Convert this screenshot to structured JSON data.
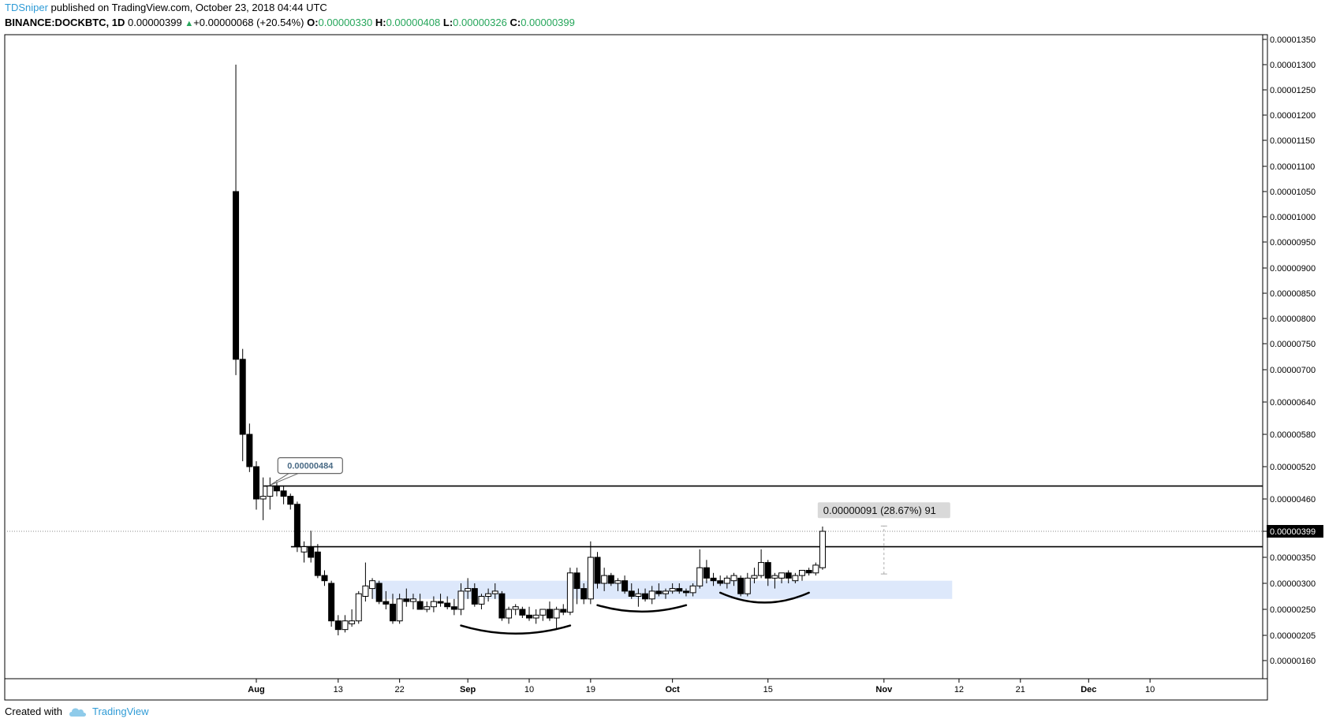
{
  "header": {
    "author": "TDSniper",
    "published": "published on TradingView.com, October 23, 2018 04:44 UTC",
    "symbol": "BINANCE:DOCKBTC, 1D",
    "last": "0.00000399",
    "change": "+0.00000068 (+20.54%)",
    "o_label": "O:",
    "o": "0.00000330",
    "h_label": "H:",
    "h": "0.00000408",
    "l_label": "L:",
    "l": "0.00000326",
    "c_label": "C:",
    "c": "0.00000399"
  },
  "footer": {
    "created": "Created with",
    "brand": "TradingView",
    "logo_icon": "tradingview-cloud-icon"
  },
  "colors": {
    "up": "#26a65b",
    "brand": "#2f9bd6",
    "zone": "#dde8fb",
    "candle": "#000000"
  },
  "chart_data": {
    "type": "candlestick",
    "y_axis_labels": [
      "0.00001350",
      "0.00001300",
      "0.00001250",
      "0.00001200",
      "0.00001150",
      "0.00001100",
      "0.00001050",
      "0.00001000",
      "0.00000950",
      "0.00000900",
      "0.00000850",
      "0.00000800",
      "0.00000750",
      "0.00000700",
      "0.00000640",
      "0.00000580",
      "0.00000520",
      "0.00000460",
      "0.00000399",
      "0.00000350",
      "0.00000300",
      "0.00000250",
      "0.00000205",
      "0.00000160"
    ],
    "x_axis": [
      {
        "label": "Aug",
        "date": "2018-08-01",
        "bold": true
      },
      {
        "label": "13",
        "date": "2018-08-13"
      },
      {
        "label": "22",
        "date": "2018-08-22"
      },
      {
        "label": "Sep",
        "date": "2018-09-01",
        "bold": true
      },
      {
        "label": "10",
        "date": "2018-09-10"
      },
      {
        "label": "19",
        "date": "2018-09-19"
      },
      {
        "label": "Oct",
        "date": "2018-10-01",
        "bold": true
      },
      {
        "label": "15",
        "date": "2018-10-15"
      },
      {
        "label": "Nov",
        "date": "2018-11-01",
        "bold": true
      },
      {
        "label": "12",
        "date": "2018-11-12"
      },
      {
        "label": "21",
        "date": "2018-11-21"
      },
      {
        "label": "Dec",
        "date": "2018-12-01",
        "bold": true
      },
      {
        "label": "10",
        "date": "2018-12-10"
      }
    ],
    "last_price": "0.00000399",
    "ohlc": [
      {
        "date": "2018-07-29",
        "o": 1.05e-05,
        "h": 1.3e-05,
        "l": 6.9e-06,
        "c": 7.2e-06
      },
      {
        "date": "2018-07-30",
        "o": 7.2e-06,
        "h": 7.4e-06,
        "l": 5.3e-06,
        "c": 5.8e-06
      },
      {
        "date": "2018-07-31",
        "o": 5.8e-06,
        "h": 6e-06,
        "l": 5.1e-06,
        "c": 5.2e-06
      },
      {
        "date": "2018-08-01",
        "o": 5.2e-06,
        "h": 5.3e-06,
        "l": 4.4e-06,
        "c": 4.6e-06
      },
      {
        "date": "2018-08-02",
        "o": 4.6e-06,
        "h": 5e-06,
        "l": 4.2e-06,
        "c": 4.65e-06
      },
      {
        "date": "2018-08-03",
        "o": 4.65e-06,
        "h": 5e-06,
        "l": 4.4e-06,
        "c": 4.84e-06
      },
      {
        "date": "2018-08-04",
        "o": 4.84e-06,
        "h": 4.95e-06,
        "l": 4.65e-06,
        "c": 4.75e-06
      },
      {
        "date": "2018-08-05",
        "o": 4.75e-06,
        "h": 4.85e-06,
        "l": 4.5e-06,
        "c": 4.65e-06
      },
      {
        "date": "2018-08-06",
        "o": 4.65e-06,
        "h": 4.7e-06,
        "l": 4.4e-06,
        "c": 4.5e-06
      },
      {
        "date": "2018-08-07",
        "o": 4.5e-06,
        "h": 4.55e-06,
        "l": 3.6e-06,
        "c": 3.7e-06
      },
      {
        "date": "2018-08-08",
        "o": 3.6e-06,
        "h": 3.8e-06,
        "l": 3.4e-06,
        "c": 3.7e-06
      },
      {
        "date": "2018-08-09",
        "o": 3.7e-06,
        "h": 4e-06,
        "l": 3.4e-06,
        "c": 3.5e-06
      },
      {
        "date": "2018-08-10",
        "o": 3.6e-06,
        "h": 3.75e-06,
        "l": 3.1e-06,
        "c": 3.15e-06
      },
      {
        "date": "2018-08-11",
        "o": 3.15e-06,
        "h": 3.25e-06,
        "l": 2.95e-06,
        "c": 3.05e-06
      },
      {
        "date": "2018-08-12",
        "o": 3e-06,
        "h": 3.05e-06,
        "l": 2.2e-06,
        "c": 2.3e-06
      },
      {
        "date": "2018-08-13",
        "o": 2.3e-06,
        "h": 2.4e-06,
        "l": 2.05e-06,
        "c": 2.15e-06
      },
      {
        "date": "2018-08-14",
        "o": 2.15e-06,
        "h": 2.4e-06,
        "l": 2.1e-06,
        "c": 2.3e-06
      },
      {
        "date": "2018-08-15",
        "o": 2.25e-06,
        "h": 2.5e-06,
        "l": 2.2e-06,
        "c": 2.3e-06
      },
      {
        "date": "2018-08-16",
        "o": 2.3e-06,
        "h": 2.85e-06,
        "l": 2.25e-06,
        "c": 2.8e-06
      },
      {
        "date": "2018-08-17",
        "o": 2.75e-06,
        "h": 3.4e-06,
        "l": 2.65e-06,
        "c": 2.95e-06
      },
      {
        "date": "2018-08-18",
        "o": 2.9e-06,
        "h": 3.1e-06,
        "l": 2.7e-06,
        "c": 3.05e-06
      },
      {
        "date": "2018-08-19",
        "o": 3e-06,
        "h": 3.05e-06,
        "l": 2.6e-06,
        "c": 2.65e-06
      },
      {
        "date": "2018-08-20",
        "o": 2.65e-06,
        "h": 2.85e-06,
        "l": 2.5e-06,
        "c": 2.6e-06
      },
      {
        "date": "2018-08-21",
        "o": 2.6e-06,
        "h": 2.8e-06,
        "l": 2.25e-06,
        "c": 2.3e-06
      },
      {
        "date": "2018-08-22",
        "o": 2.3e-06,
        "h": 2.8e-06,
        "l": 2.25e-06,
        "c": 2.7e-06
      },
      {
        "date": "2018-08-23",
        "o": 2.7e-06,
        "h": 2.9e-06,
        "l": 2.55e-06,
        "c": 2.65e-06
      },
      {
        "date": "2018-08-24",
        "o": 2.65e-06,
        "h": 2.8e-06,
        "l": 2.5e-06,
        "c": 2.7e-06
      },
      {
        "date": "2018-08-25",
        "o": 2.65e-06,
        "h": 2.8e-06,
        "l": 2.5e-06,
        "c": 2.5e-06
      },
      {
        "date": "2018-08-26",
        "o": 2.5e-06,
        "h": 2.65e-06,
        "l": 2.45e-06,
        "c": 2.55e-06
      },
      {
        "date": "2018-08-27",
        "o": 2.55e-06,
        "h": 2.75e-06,
        "l": 2.45e-06,
        "c": 2.65e-06
      },
      {
        "date": "2018-08-28",
        "o": 2.65e-06,
        "h": 2.8e-06,
        "l": 2.55e-06,
        "c": 2.62e-06
      },
      {
        "date": "2018-08-29",
        "o": 2.62e-06,
        "h": 2.75e-06,
        "l": 2.5e-06,
        "c": 2.55e-06
      },
      {
        "date": "2018-08-30",
        "o": 2.55e-06,
        "h": 2.7e-06,
        "l": 2.4e-06,
        "c": 2.5e-06
      },
      {
        "date": "2018-08-31",
        "o": 2.5e-06,
        "h": 3e-06,
        "l": 2.4e-06,
        "c": 2.85e-06
      },
      {
        "date": "2018-09-01",
        "o": 2.85e-06,
        "h": 3.1e-06,
        "l": 2.7e-06,
        "c": 2.9e-06
      },
      {
        "date": "2018-09-02",
        "o": 2.9e-06,
        "h": 3e-06,
        "l": 2.55e-06,
        "c": 2.6e-06
      },
      {
        "date": "2018-09-03",
        "o": 2.6e-06,
        "h": 2.8e-06,
        "l": 2.5e-06,
        "c": 2.75e-06
      },
      {
        "date": "2018-09-04",
        "o": 2.75e-06,
        "h": 2.9e-06,
        "l": 2.65e-06,
        "c": 2.8e-06
      },
      {
        "date": "2018-09-05",
        "o": 2.8e-06,
        "h": 3e-06,
        "l": 2.7e-06,
        "c": 2.85e-06
      },
      {
        "date": "2018-09-06",
        "o": 2.8e-06,
        "h": 2.85e-06,
        "l": 2.3e-06,
        "c": 2.35e-06
      },
      {
        "date": "2018-09-07",
        "o": 2.35e-06,
        "h": 2.55e-06,
        "l": 2.25e-06,
        "c": 2.5e-06
      },
      {
        "date": "2018-09-08",
        "o": 2.5e-06,
        "h": 2.6e-06,
        "l": 2.4e-06,
        "c": 2.55e-06
      },
      {
        "date": "2018-09-09",
        "o": 2.5e-06,
        "h": 2.55e-06,
        "l": 2.35e-06,
        "c": 2.4e-06
      },
      {
        "date": "2018-09-10",
        "o": 2.4e-06,
        "h": 2.55e-06,
        "l": 2.3e-06,
        "c": 2.35e-06
      },
      {
        "date": "2018-09-11",
        "o": 2.35e-06,
        "h": 2.5e-06,
        "l": 2.25e-06,
        "c": 2.4e-06
      },
      {
        "date": "2018-09-12",
        "o": 2.4e-06,
        "h": 2.5e-06,
        "l": 2.3e-06,
        "c": 2.5e-06
      },
      {
        "date": "2018-09-13",
        "o": 2.5e-06,
        "h": 2.65e-06,
        "l": 2.3e-06,
        "c": 2.35e-06
      },
      {
        "date": "2018-09-14",
        "o": 2.35e-06,
        "h": 2.55e-06,
        "l": 2.15e-06,
        "c": 2.5e-06
      },
      {
        "date": "2018-09-15",
        "o": 2.5e-06,
        "h": 2.6e-06,
        "l": 2.4e-06,
        "c": 2.45e-06
      },
      {
        "date": "2018-09-16",
        "o": 2.45e-06,
        "h": 3.3e-06,
        "l": 2.4e-06,
        "c": 3.2e-06
      },
      {
        "date": "2018-09-17",
        "o": 3.2e-06,
        "h": 3.3e-06,
        "l": 2.6e-06,
        "c": 2.9e-06
      },
      {
        "date": "2018-09-18",
        "o": 2.9e-06,
        "h": 3e-06,
        "l": 2.6e-06,
        "c": 2.7e-06
      },
      {
        "date": "2018-09-19",
        "o": 2.7e-06,
        "h": 3.8e-06,
        "l": 2.6e-06,
        "c": 3.5e-06
      },
      {
        "date": "2018-09-20",
        "o": 3.5e-06,
        "h": 3.6e-06,
        "l": 2.9e-06,
        "c": 3e-06
      },
      {
        "date": "2018-09-21",
        "o": 3e-06,
        "h": 3.3e-06,
        "l": 2.85e-06,
        "c": 3.15e-06
      },
      {
        "date": "2018-09-22",
        "o": 3.15e-06,
        "h": 3.2e-06,
        "l": 2.95e-06,
        "c": 3e-06
      },
      {
        "date": "2018-09-23",
        "o": 3e-06,
        "h": 3.1e-06,
        "l": 2.85e-06,
        "c": 3.05e-06
      },
      {
        "date": "2018-09-24",
        "o": 3.05e-06,
        "h": 3.15e-06,
        "l": 2.8e-06,
        "c": 2.85e-06
      },
      {
        "date": "2018-09-25",
        "o": 2.85e-06,
        "h": 3e-06,
        "l": 2.7e-06,
        "c": 2.75e-06
      },
      {
        "date": "2018-09-26",
        "o": 2.75e-06,
        "h": 2.9e-06,
        "l": 2.55e-06,
        "c": 2.8e-06
      },
      {
        "date": "2018-09-27",
        "o": 2.8e-06,
        "h": 2.9e-06,
        "l": 2.65e-06,
        "c": 2.7e-06
      },
      {
        "date": "2018-09-28",
        "o": 2.7e-06,
        "h": 2.95e-06,
        "l": 2.6e-06,
        "c": 2.85e-06
      },
      {
        "date": "2018-09-29",
        "o": 2.85e-06,
        "h": 3e-06,
        "l": 2.75e-06,
        "c": 2.8e-06
      },
      {
        "date": "2018-09-30",
        "o": 2.8e-06,
        "h": 2.9e-06,
        "l": 2.7e-06,
        "c": 2.85e-06
      },
      {
        "date": "2018-10-01",
        "o": 2.85e-06,
        "h": 3e-06,
        "l": 2.8e-06,
        "c": 2.9e-06
      },
      {
        "date": "2018-10-02",
        "o": 2.9e-06,
        "h": 3e-06,
        "l": 2.8e-06,
        "c": 2.85e-06
      },
      {
        "date": "2018-10-03",
        "o": 2.85e-06,
        "h": 2.9e-06,
        "l": 2.75e-06,
        "c": 2.82e-06
      },
      {
        "date": "2018-10-04",
        "o": 2.82e-06,
        "h": 3e-06,
        "l": 2.75e-06,
        "c": 2.95e-06
      },
      {
        "date": "2018-10-05",
        "o": 2.95e-06,
        "h": 3.65e-06,
        "l": 2.9e-06,
        "c": 3.3e-06
      },
      {
        "date": "2018-10-06",
        "o": 3.3e-06,
        "h": 3.45e-06,
        "l": 3e-06,
        "c": 3.1e-06
      },
      {
        "date": "2018-10-07",
        "o": 3.1e-06,
        "h": 3.2e-06,
        "l": 2.95e-06,
        "c": 3.05e-06
      },
      {
        "date": "2018-10-08",
        "o": 3.05e-06,
        "h": 3.15e-06,
        "l": 2.95e-06,
        "c": 3e-06
      },
      {
        "date": "2018-10-09",
        "o": 3e-06,
        "h": 3.15e-06,
        "l": 2.9e-06,
        "c": 3.1e-06
      },
      {
        "date": "2018-10-10",
        "o": 3.05e-06,
        "h": 3.2e-06,
        "l": 2.95e-06,
        "c": 3.15e-06
      },
      {
        "date": "2018-10-11",
        "o": 3.1e-06,
        "h": 3.15e-06,
        "l": 2.75e-06,
        "c": 2.8e-06
      },
      {
        "date": "2018-10-12",
        "o": 2.8e-06,
        "h": 3.2e-06,
        "l": 2.75e-06,
        "c": 3.1e-06
      },
      {
        "date": "2018-10-13",
        "o": 3.1e-06,
        "h": 3.3e-06,
        "l": 3e-06,
        "c": 3.15e-06
      },
      {
        "date": "2018-10-14",
        "o": 3.15e-06,
        "h": 3.65e-06,
        "l": 3.1e-06,
        "c": 3.4e-06
      },
      {
        "date": "2018-10-15",
        "o": 3.4e-06,
        "h": 3.45e-06,
        "l": 2.95e-06,
        "c": 3.1e-06
      },
      {
        "date": "2018-10-16",
        "o": 3.1e-06,
        "h": 3.2e-06,
        "l": 2.9e-06,
        "c": 3.15e-06
      },
      {
        "date": "2018-10-17",
        "o": 3.1e-06,
        "h": 3.2e-06,
        "l": 3e-06,
        "c": 3.2e-06
      },
      {
        "date": "2018-10-18",
        "o": 3.2e-06,
        "h": 3.25e-06,
        "l": 3e-06,
        "c": 3.1e-06
      },
      {
        "date": "2018-10-19",
        "o": 3.05e-06,
        "h": 3.2e-06,
        "l": 3e-06,
        "c": 3.15e-06
      },
      {
        "date": "2018-10-20",
        "o": 3.15e-06,
        "h": 3.25e-06,
        "l": 3.05e-06,
        "c": 3.25e-06
      },
      {
        "date": "2018-10-21",
        "o": 3.25e-06,
        "h": 3.3e-06,
        "l": 3.15e-06,
        "c": 3.2e-06
      },
      {
        "date": "2018-10-22",
        "o": 3.2e-06,
        "h": 3.4e-06,
        "l": 3.15e-06,
        "c": 3.35e-06
      },
      {
        "date": "2018-10-23",
        "o": 3.3e-06,
        "h": 4.08e-06,
        "l": 3.26e-06,
        "c": 3.99e-06
      }
    ],
    "horizontal_lines": [
      {
        "name": "resistance-upper",
        "price": 4.84e-06,
        "from": "2018-08-03"
      },
      {
        "name": "resistance-neckline",
        "price": 3.7e-06,
        "from": "2018-08-07"
      }
    ],
    "zones": [
      {
        "name": "support-zone",
        "from": "2018-08-18",
        "to": "2018-11-11",
        "low": 2.7e-06,
        "high": 3.05e-06
      }
    ],
    "price_label": {
      "text": "0.00000484",
      "date": "2018-08-03",
      "price": 4.84e-06
    },
    "measure": {
      "text": "0.00000091 (28.67%) 91",
      "date": "2018-11-01",
      "from_price": 3.18e-06,
      "to_price": 4.09e-06
    },
    "arcs": [
      {
        "name": "arc-1",
        "from": "2018-08-31",
        "to": "2018-09-16",
        "depth_price": 2.08e-06,
        "edge_price": 2.22e-06
      },
      {
        "name": "arc-2",
        "from": "2018-09-20",
        "to": "2018-10-03",
        "depth_price": 2.46e-06,
        "edge_price": 2.58e-06
      },
      {
        "name": "arc-3",
        "from": "2018-10-08",
        "to": "2018-10-21",
        "depth_price": 2.63e-06,
        "edge_price": 2.82e-06
      }
    ]
  }
}
